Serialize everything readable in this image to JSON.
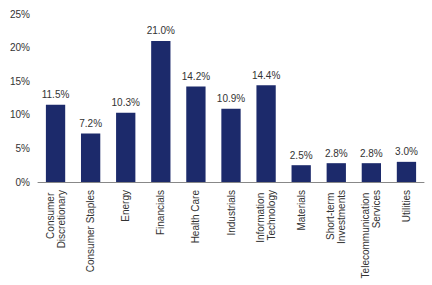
{
  "chart_data": {
    "type": "bar",
    "categories": [
      "Consumer Discretionary",
      "Consumer Staples",
      "Energy",
      "Financials",
      "Health Care",
      "Industrials",
      "Information Technology",
      "Materials",
      "Short-term Investments",
      "Telecommunication Services",
      "Utilities"
    ],
    "values": [
      11.5,
      7.2,
      10.3,
      21.0,
      14.2,
      10.9,
      14.4,
      2.5,
      2.8,
      2.8,
      3.0
    ],
    "value_labels": [
      "11.5%",
      "7.2%",
      "10.3%",
      "21.0%",
      "14.2%",
      "10.9%",
      "14.4%",
      "2.5%",
      "2.8%",
      "2.8%",
      "3.0%"
    ],
    "color": "#1c2a6b",
    "ylim": [
      0,
      25
    ],
    "yticks": [
      {
        "value": 0,
        "label": "0%"
      },
      {
        "value": 5,
        "label": "5%"
      },
      {
        "value": 10,
        "label": "10%"
      },
      {
        "value": 15,
        "label": "15%"
      },
      {
        "value": 20,
        "label": "20%"
      },
      {
        "value": 25,
        "label": "25%"
      }
    ],
    "data_labels": true,
    "grid": false
  }
}
